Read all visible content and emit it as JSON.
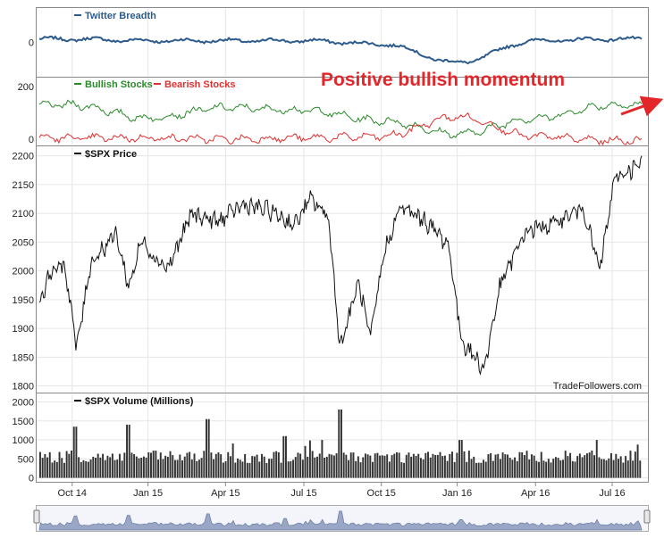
{
  "chart_data": [
    {
      "type": "line",
      "legend": [
        "Twitter Breadth"
      ],
      "colors": {
        "Twitter Breadth": "#2d5b8e"
      },
      "yticks": [
        0
      ],
      "ylim": [
        -20,
        20
      ],
      "series": [
        {
          "name": "Twitter Breadth",
          "x": [
            "Oct 14",
            "Jan 15",
            "Apr 15",
            "Jul 15",
            "Oct 15",
            "Jan 16",
            "Apr 16",
            "Jul 16"
          ],
          "values": [
            2,
            1,
            1,
            1,
            -1,
            -12,
            1,
            2
          ]
        }
      ]
    },
    {
      "type": "line",
      "legend": [
        "Bullish Stocks",
        "Bearish Stocks"
      ],
      "colors": {
        "Bullish Stocks": "#2a8a2a",
        "Bearish Stocks": "#e03030"
      },
      "yticks": [
        0,
        200
      ],
      "ylim": [
        -20,
        230
      ],
      "series": [
        {
          "name": "Bullish Stocks",
          "x": [
            "Oct 14",
            "Jan 15",
            "Apr 15",
            "Jul 15",
            "Oct 15",
            "Jan 16",
            "Apr 16",
            "Jul 16"
          ],
          "values": [
            130,
            80,
            120,
            110,
            70,
            20,
            80,
            130
          ]
        },
        {
          "name": "Bearish Stocks",
          "x": [
            "Oct 14",
            "Jan 15",
            "Apr 15",
            "Jul 15",
            "Oct 15",
            "Jan 16",
            "Apr 16",
            "Jul 16"
          ],
          "values": [
            5,
            5,
            0,
            5,
            10,
            85,
            10,
            -5
          ]
        }
      ]
    },
    {
      "type": "line",
      "legend": [
        "$SPX Price"
      ],
      "colors": {
        "$SPX Price": "#111111"
      },
      "yticks": [
        1800,
        1850,
        1900,
        1950,
        2000,
        2050,
        2100,
        2150,
        2200
      ],
      "ylim": [
        1790,
        2215
      ],
      "grid": true,
      "series": [
        {
          "name": "$SPX Price",
          "points": [
            [
              "2014-09-01",
              1945
            ],
            [
              "2014-09-15",
              2000
            ],
            [
              "2014-10-01",
              2010
            ],
            [
              "2014-10-10",
              1925
            ],
            [
              "2014-10-15",
              1862
            ],
            [
              "2014-11-01",
              2015
            ],
            [
              "2014-12-01",
              2065
            ],
            [
              "2014-12-16",
              1972
            ],
            [
              "2015-01-01",
              2055
            ],
            [
              "2015-01-15",
              2025
            ],
            [
              "2015-02-01",
              2005
            ],
            [
              "2015-03-01",
              2100
            ],
            [
              "2015-04-01",
              2085
            ],
            [
              "2015-05-01",
              2115
            ],
            [
              "2015-06-01",
              2105
            ],
            [
              "2015-07-01",
              2080
            ],
            [
              "2015-07-20",
              2125
            ],
            [
              "2015-08-10",
              2095
            ],
            [
              "2015-08-24",
              1867
            ],
            [
              "2015-09-15",
              1980
            ],
            [
              "2015-09-29",
              1880
            ],
            [
              "2015-10-15",
              2030
            ],
            [
              "2015-11-03",
              2110
            ],
            [
              "2015-12-01",
              2090
            ],
            [
              "2015-12-31",
              2045
            ],
            [
              "2016-01-15",
              1880
            ],
            [
              "2016-02-11",
              1829
            ],
            [
              "2016-03-01",
              1975
            ],
            [
              "2016-04-01",
              2070
            ],
            [
              "2016-05-01",
              2080
            ],
            [
              "2016-06-08",
              2110
            ],
            [
              "2016-06-27",
              2000
            ],
            [
              "2016-07-15",
              2160
            ],
            [
              "2016-08-01",
              2175
            ],
            [
              "2016-08-16",
              2185
            ]
          ]
        }
      ],
      "watermark": "TradeFollowers.com"
    },
    {
      "type": "bar",
      "legend": [
        "$SPX Volume (Millions)"
      ],
      "colors": {
        "$SPX Volume (Millions)": "#333333"
      },
      "yticks": [
        0,
        500,
        1000,
        1500,
        2000
      ],
      "ylim": [
        -80,
        2200
      ],
      "typical_volume": 600,
      "spikes": [
        [
          "2014-10-15",
          1350
        ],
        [
          "2014-12-16",
          1400
        ],
        [
          "2015-03-20",
          1550
        ],
        [
          "2015-06-19",
          1100
        ],
        [
          "2015-08-24",
          1800
        ],
        [
          "2016-01-15",
          1000
        ],
        [
          "2016-06-24",
          1000
        ]
      ],
      "xticks": [
        "Oct 14",
        "Jan 15",
        "Apr 15",
        "Jul 15",
        "Oct 15",
        "Jan 16",
        "Apr 16",
        "Jul 16"
      ]
    }
  ],
  "annotation": {
    "text": "Positive bullish momentum",
    "color": "#e3262a"
  }
}
